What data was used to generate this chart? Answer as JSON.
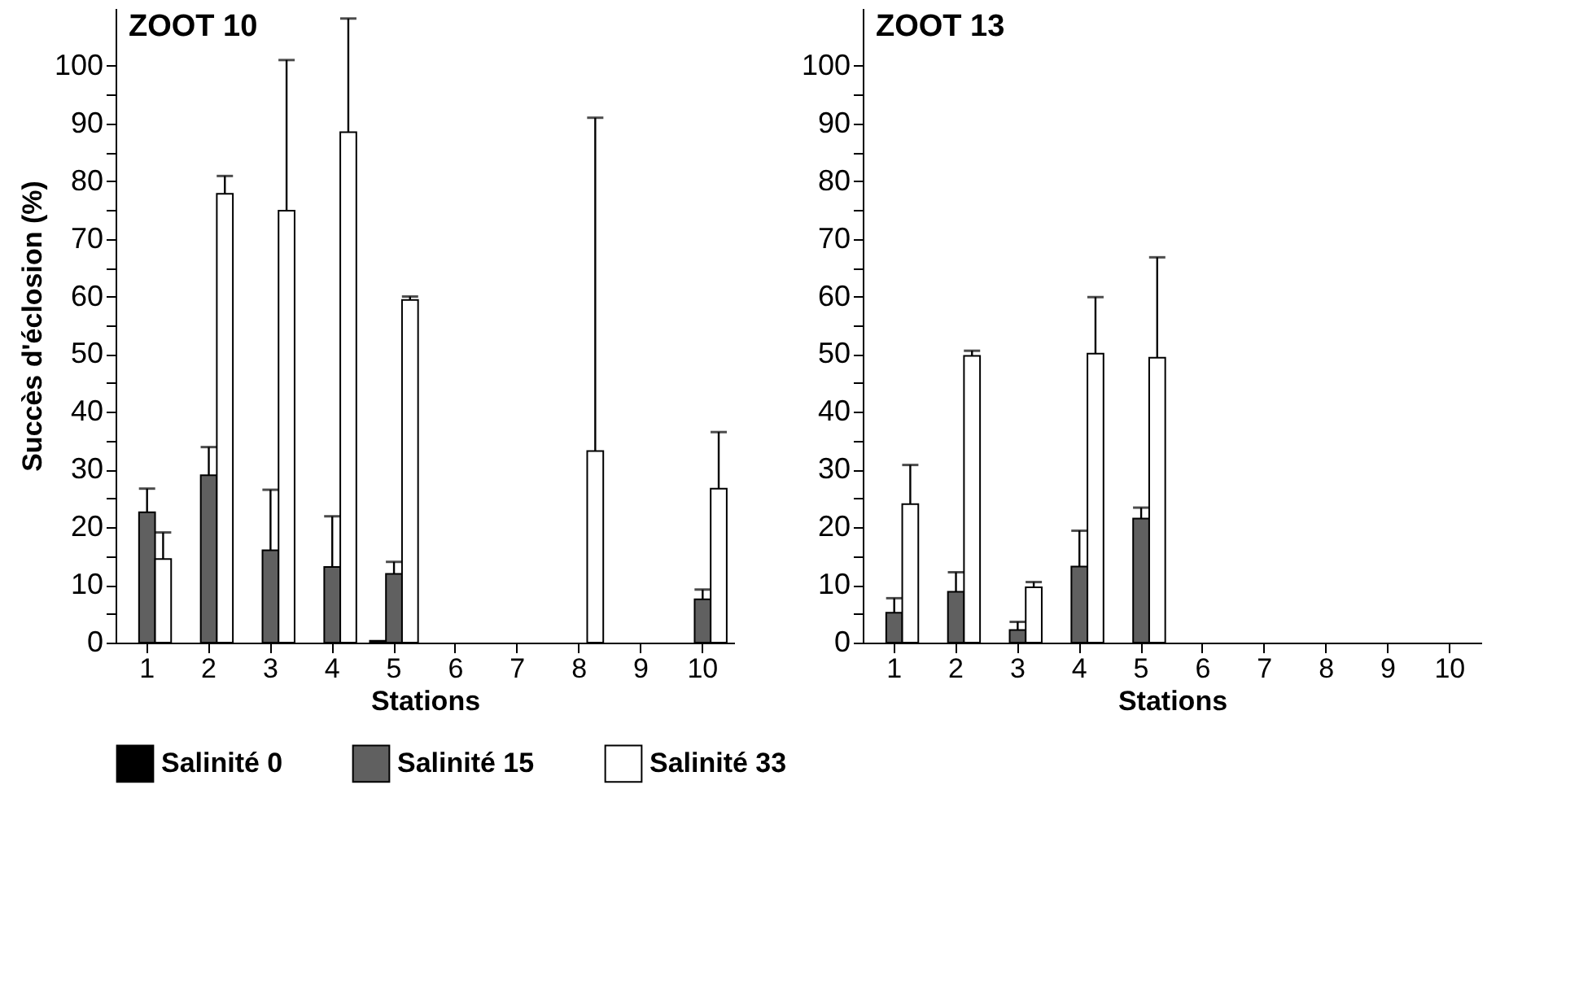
{
  "chart_data": [
    {
      "type": "bar",
      "title": "ZOOT 10",
      "xlabel": "Stations",
      "ylabel": "Succès d'éclosion (%)",
      "categories": [
        "1",
        "2",
        "3",
        "4",
        "5",
        "6",
        "7",
        "8",
        "9",
        "10"
      ],
      "series": [
        {
          "name": "Salinité 0",
          "color": "#000000",
          "values": [
            0,
            0,
            0,
            0,
            0.3,
            0,
            0,
            0,
            0,
            0
          ]
        },
        {
          "name": "Salinité 15",
          "color": "#606060",
          "values": [
            22.6,
            29.0,
            16.0,
            13.1,
            11.9,
            0,
            0,
            0,
            0,
            7.5
          ],
          "errors": [
            [
              22.6,
              26.7
            ],
            [
              29.0,
              33.9
            ],
            [
              16.0,
              26.5
            ],
            [
              13.1,
              21.9
            ],
            [
              11.9,
              14.0
            ],
            null,
            null,
            null,
            null,
            [
              7.5,
              9.2
            ]
          ]
        },
        {
          "name": "Salinité 33",
          "color": "#ffffff",
          "values": [
            14.5,
            77.8,
            74.9,
            88.5,
            59.4,
            0,
            0,
            33.2,
            0,
            26.7
          ],
          "errors": [
            [
              14.5,
              19.1
            ],
            [
              77.8,
              80.9
            ],
            [
              74.9,
              101.0
            ],
            [
              88.5,
              108.2
            ],
            [
              59.4,
              60.0
            ],
            null,
            null,
            [
              33.2,
              91.0
            ],
            null,
            [
              26.7,
              36.5
            ]
          ]
        }
      ],
      "ylim": [
        0,
        110
      ],
      "yticks": [
        0,
        {
          "value": 5,
          "label": null
        },
        10,
        {
          "value": 15,
          "label": null
        },
        20,
        {
          "value": 25,
          "label": null
        },
        30,
        {
          "value": 35,
          "label": null
        },
        40,
        {
          "value": 45,
          "label": null
        },
        50,
        {
          "value": 55,
          "label": null
        },
        60,
        {
          "value": 65,
          "label": null
        },
        70,
        {
          "value": 75,
          "label": null
        },
        80,
        {
          "value": 85,
          "label": null
        },
        90,
        {
          "value": 95,
          "label": null
        },
        100
      ],
      "grid": false,
      "legend": "bottom"
    },
    {
      "type": "bar",
      "title": "ZOOT 13",
      "xlabel": "Stations",
      "categories": [
        "1",
        "2",
        "3",
        "4",
        "5",
        "6",
        "7",
        "8",
        "9",
        "10"
      ],
      "series": [
        {
          "name": "Salinité 0",
          "color": "#000000",
          "values": [
            0,
            0,
            0,
            0,
            0,
            0,
            0,
            0,
            0,
            0
          ]
        },
        {
          "name": "Salinité 15",
          "color": "#606060",
          "values": [
            5.2,
            8.8,
            2.2,
            13.2,
            21.5,
            0,
            0,
            0,
            0,
            0
          ],
          "errors": [
            [
              5.2,
              7.7
            ],
            [
              8.8,
              12.2
            ],
            [
              2.2,
              3.6
            ],
            [
              13.2,
              19.4
            ],
            [
              21.5,
              23.4
            ],
            null,
            null,
            null,
            null,
            null
          ]
        },
        {
          "name": "Salinité 33",
          "color": "#ffffff",
          "values": [
            24.0,
            49.7,
            9.6,
            50.1,
            49.4,
            0,
            0,
            0,
            0,
            0
          ],
          "errors": [
            [
              24.0,
              30.8
            ],
            [
              49.7,
              50.6
            ],
            [
              9.6,
              10.5
            ],
            [
              50.1,
              59.9
            ],
            [
              49.4,
              66.8
            ],
            null,
            null,
            null,
            null,
            null
          ]
        }
      ],
      "ylim": [
        0,
        110
      ],
      "yticks": [
        0,
        {
          "value": 5,
          "label": null
        },
        10,
        {
          "value": 15,
          "label": null
        },
        20,
        {
          "value": 25,
          "label": null
        },
        30,
        {
          "value": 35,
          "label": null
        },
        40,
        {
          "value": 45,
          "label": null
        },
        50,
        {
          "value": 55,
          "label": null
        },
        60,
        {
          "value": 65,
          "label": null
        },
        70,
        {
          "value": 75,
          "label": null
        },
        80,
        {
          "value": 85,
          "label": null
        },
        90,
        {
          "value": 95,
          "label": null
        },
        100
      ],
      "grid": false,
      "legend": "bottom"
    }
  ]
}
